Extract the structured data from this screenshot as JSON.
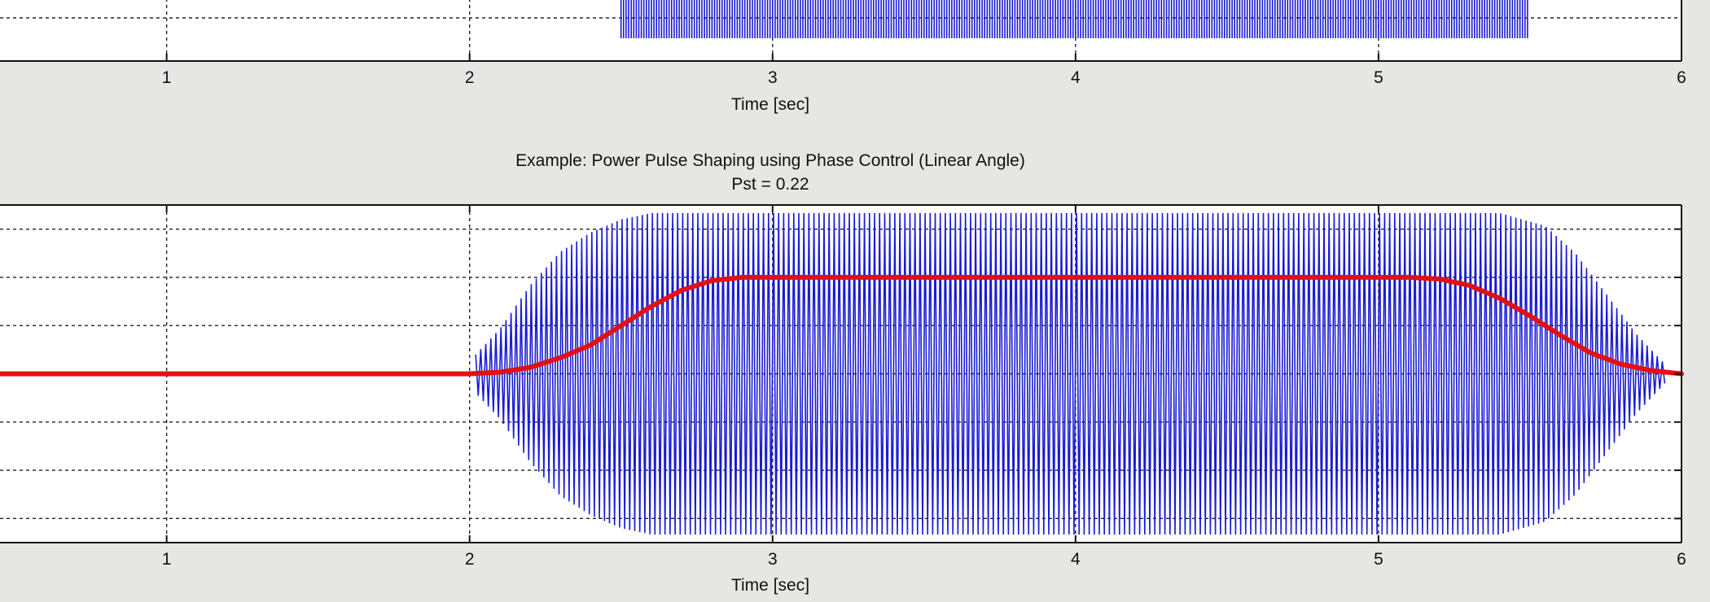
{
  "window": {
    "background": "#e6e6e4"
  },
  "chart_data": [
    {
      "type": "line",
      "title": "",
      "subtitle": "",
      "xlabel": "Time [sec]",
      "ylabel": "",
      "xlim": [
        0.45,
        6
      ],
      "xticks": [
        1,
        2,
        3,
        4,
        5,
        6
      ],
      "tick_labels": [
        "1",
        "2",
        "3",
        "4",
        "5",
        "6"
      ],
      "grid": true,
      "grid_style": "dotted",
      "plot_background": "#ffffff",
      "cropped_at_top": true,
      "series": [
        {
          "style": "oscillation",
          "color": "#1a1ad6",
          "burst_start": 2.5,
          "burst_end": 5.5,
          "amplitude": "constant"
        }
      ]
    },
    {
      "type": "line",
      "title": "Example: Power Pulse Shaping using Phase Control (Linear Angle)",
      "subtitle": "Pst = 0.22",
      "xlabel": "Time [sec]",
      "ylabel": "",
      "xlim": [
        0.45,
        6
      ],
      "ylim": [
        -1.05,
        1.05
      ],
      "xticks": [
        1,
        2,
        3,
        4,
        5,
        6
      ],
      "tick_labels": [
        "1",
        "2",
        "3",
        "4",
        "5",
        "6"
      ],
      "ygrid": [
        -0.9,
        -0.6,
        -0.3,
        0,
        0.3,
        0.6,
        0.9
      ],
      "grid": true,
      "grid_style": "dotted",
      "plot_background": "#ffffff",
      "series": [
        {
          "style": "oscillation",
          "color": "#1a1ad6",
          "envelope": {
            "x": [
              2.02,
              2.1,
              2.2,
              2.3,
              2.4,
              2.5,
              2.6,
              2.8,
              3.0,
              5.0,
              5.4,
              5.55,
              5.65,
              5.75,
              5.85,
              5.95
            ],
            "amplitude": [
              0.12,
              0.28,
              0.55,
              0.76,
              0.88,
              0.96,
              1.0,
              1.0,
              1.0,
              1.0,
              1.0,
              0.92,
              0.75,
              0.5,
              0.25,
              0.05
            ]
          }
        },
        {
          "style": "solid",
          "color": "#e31010",
          "width": 6,
          "x": [
            0.45,
            2.0,
            2.1,
            2.2,
            2.3,
            2.4,
            2.5,
            2.6,
            2.7,
            2.8,
            2.9,
            5.1,
            5.2,
            5.3,
            5.4,
            5.5,
            5.6,
            5.7,
            5.8,
            5.9,
            6.0
          ],
          "y": [
            0,
            0,
            0.01,
            0.04,
            0.1,
            0.18,
            0.3,
            0.42,
            0.52,
            0.58,
            0.6,
            0.6,
            0.59,
            0.55,
            0.47,
            0.36,
            0.24,
            0.13,
            0.06,
            0.02,
            0
          ]
        }
      ]
    }
  ]
}
